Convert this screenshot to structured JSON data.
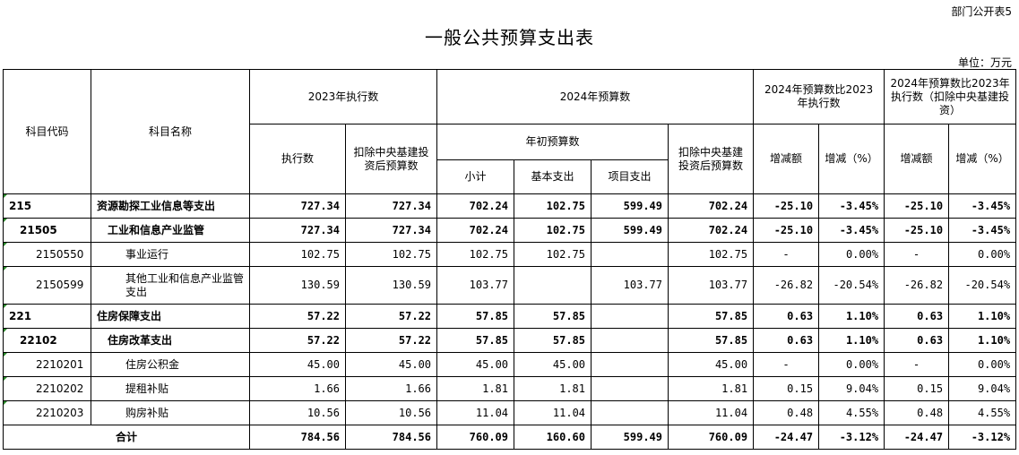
{
  "doc": {
    "corner_label": "部门公开表5",
    "title": "一般公共预算支出表",
    "unit": "单位：万元"
  },
  "headers": {
    "code": "科目代码",
    "name": "科目名称",
    "exec2023": "2023年执行数",
    "exec": "执行数",
    "exec_excl": "扣除中央基建投资后预算数",
    "budget2024": "2024年预算数",
    "initial_budget": "年初预算数",
    "subtotal": "小计",
    "basic": "基本支出",
    "project": "项目支出",
    "budget_excl": "扣除中央基建投资后预算数",
    "cmp1": "2024年预算数比2023年执行数",
    "cmp2": "2024年预算数比2023年执行数（扣除中央基建投资）",
    "inc_amt": "增减额",
    "inc_pct": "增减（%）",
    "inc_amt2": "增减额",
    "inc_pct2": "增减（%）"
  },
  "rows": [
    {
      "code": "215",
      "name": "资源勘探工业信息等支出",
      "exec": "727.34",
      "exec_excl": "727.34",
      "subtotal": "702.24",
      "basic": "102.75",
      "project": "599.49",
      "budget_excl": "702.24",
      "inc_amt": "-25.10",
      "inc_pct": "-3.45%",
      "inc_amt2": "-25.10",
      "inc_pct2": "-3.45%"
    },
    {
      "code": "21505",
      "name": "工业和信息产业监管",
      "exec": "727.34",
      "exec_excl": "727.34",
      "subtotal": "702.24",
      "basic": "102.75",
      "project": "599.49",
      "budget_excl": "702.24",
      "inc_amt": "-25.10",
      "inc_pct": "-3.45%",
      "inc_amt2": "-25.10",
      "inc_pct2": "-3.45%"
    },
    {
      "code": "2150550",
      "name": "事业运行",
      "exec": "102.75",
      "exec_excl": "102.75",
      "subtotal": "102.75",
      "basic": "102.75",
      "project": "",
      "budget_excl": "102.75",
      "inc_amt": "-",
      "inc_pct": "0.00%",
      "inc_amt2": "-",
      "inc_pct2": "0.00%"
    },
    {
      "code": "2150599",
      "name": "其他工业和信息产业监管支出",
      "exec": "130.59",
      "exec_excl": "130.59",
      "subtotal": "103.77",
      "basic": "",
      "project": "103.77",
      "budget_excl": "103.77",
      "inc_amt": "-26.82",
      "inc_pct": "-20.54%",
      "inc_amt2": "-26.82",
      "inc_pct2": "-20.54%"
    },
    {
      "code": "221",
      "name": "住房保障支出",
      "exec": "57.22",
      "exec_excl": "57.22",
      "subtotal": "57.85",
      "basic": "57.85",
      "project": "",
      "budget_excl": "57.85",
      "inc_amt": "0.63",
      "inc_pct": "1.10%",
      "inc_amt2": "0.63",
      "inc_pct2": "1.10%"
    },
    {
      "code": "22102",
      "name": "住房改革支出",
      "exec": "57.22",
      "exec_excl": "57.22",
      "subtotal": "57.85",
      "basic": "57.85",
      "project": "",
      "budget_excl": "57.85",
      "inc_amt": "0.63",
      "inc_pct": "1.10%",
      "inc_amt2": "0.63",
      "inc_pct2": "1.10%"
    },
    {
      "code": "2210201",
      "name": "住房公积金",
      "exec": "45.00",
      "exec_excl": "45.00",
      "subtotal": "45.00",
      "basic": "45.00",
      "project": "",
      "budget_excl": "45.00",
      "inc_amt": "-",
      "inc_pct": "0.00%",
      "inc_amt2": "-",
      "inc_pct2": "0.00%"
    },
    {
      "code": "2210202",
      "name": "提租补贴",
      "exec": "1.66",
      "exec_excl": "1.66",
      "subtotal": "1.81",
      "basic": "1.81",
      "project": "",
      "budget_excl": "1.81",
      "inc_amt": "0.15",
      "inc_pct": "9.04%",
      "inc_amt2": "0.15",
      "inc_pct2": "9.04%"
    },
    {
      "code": "2210203",
      "name": "购房补贴",
      "exec": "10.56",
      "exec_excl": "10.56",
      "subtotal": "11.04",
      "basic": "11.04",
      "project": "",
      "budget_excl": "11.04",
      "inc_amt": "0.48",
      "inc_pct": "4.55%",
      "inc_amt2": "0.48",
      "inc_pct2": "4.55%"
    }
  ],
  "total": {
    "label": "合计",
    "exec": "784.56",
    "exec_excl": "784.56",
    "subtotal": "760.09",
    "basic": "160.60",
    "project": "599.49",
    "budget_excl": "760.09",
    "inc_amt": "-24.47",
    "inc_pct": "-3.12%",
    "inc_amt2": "-24.47",
    "inc_pct2": "-3.12%"
  }
}
